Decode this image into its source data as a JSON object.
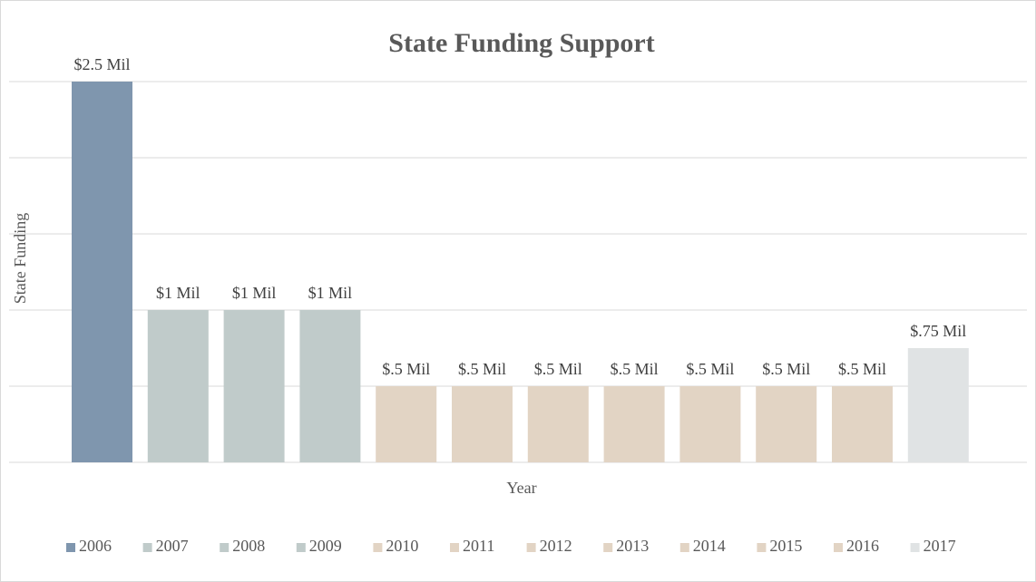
{
  "chart_data": {
    "type": "bar",
    "title": "State Funding Support",
    "x_label": "Year",
    "y_label": "State Funding",
    "categories": [
      null
    ],
    "series": [
      {
        "name": "2006",
        "color": "#7f96ae",
        "values": [
          2.5
        ],
        "value_labels": [
          "$2.5 Mil"
        ]
      },
      {
        "name": "2007",
        "color": "#c0cbca",
        "values": [
          1
        ],
        "value_labels": [
          "$1 Mil"
        ]
      },
      {
        "name": "2008",
        "color": "#c0cbca",
        "values": [
          1
        ],
        "value_labels": [
          "$1 Mil"
        ]
      },
      {
        "name": "2009",
        "color": "#c0cbca",
        "values": [
          1
        ],
        "value_labels": [
          "$1 Mil"
        ]
      },
      {
        "name": "2010",
        "color": "#e2d4c4",
        "values": [
          0.5
        ],
        "value_labels": [
          "$.5 Mil"
        ]
      },
      {
        "name": "2011",
        "color": "#e2d4c4",
        "values": [
          0.5
        ],
        "value_labels": [
          "$.5 Mil"
        ]
      },
      {
        "name": "2012",
        "color": "#e2d4c4",
        "values": [
          0.5
        ],
        "value_labels": [
          "$.5 Mil"
        ]
      },
      {
        "name": "2013",
        "color": "#e2d4c4",
        "values": [
          0.5
        ],
        "value_labels": [
          "$.5 Mil"
        ]
      },
      {
        "name": "2014",
        "color": "#e2d4c4",
        "values": [
          0.5
        ],
        "value_labels": [
          "$.5 Mil"
        ]
      },
      {
        "name": "2015",
        "color": "#e2d4c4",
        "values": [
          0.5
        ],
        "value_labels": [
          "$.5 Mil"
        ]
      },
      {
        "name": "2016",
        "color": "#e2d4c4",
        "values": [
          0.5
        ],
        "value_labels": [
          "$.5 Mil"
        ]
      },
      {
        "name": "2017",
        "color": "#e0e3e4",
        "values": [
          0.75
        ],
        "value_labels": [
          "$.75 Mil"
        ]
      }
    ],
    "ylim": [
      0,
      2.5
    ],
    "yticks": [
      0,
      0.5,
      1,
      1.5,
      2,
      2.5
    ],
    "grid": true,
    "legend": "bottom"
  }
}
